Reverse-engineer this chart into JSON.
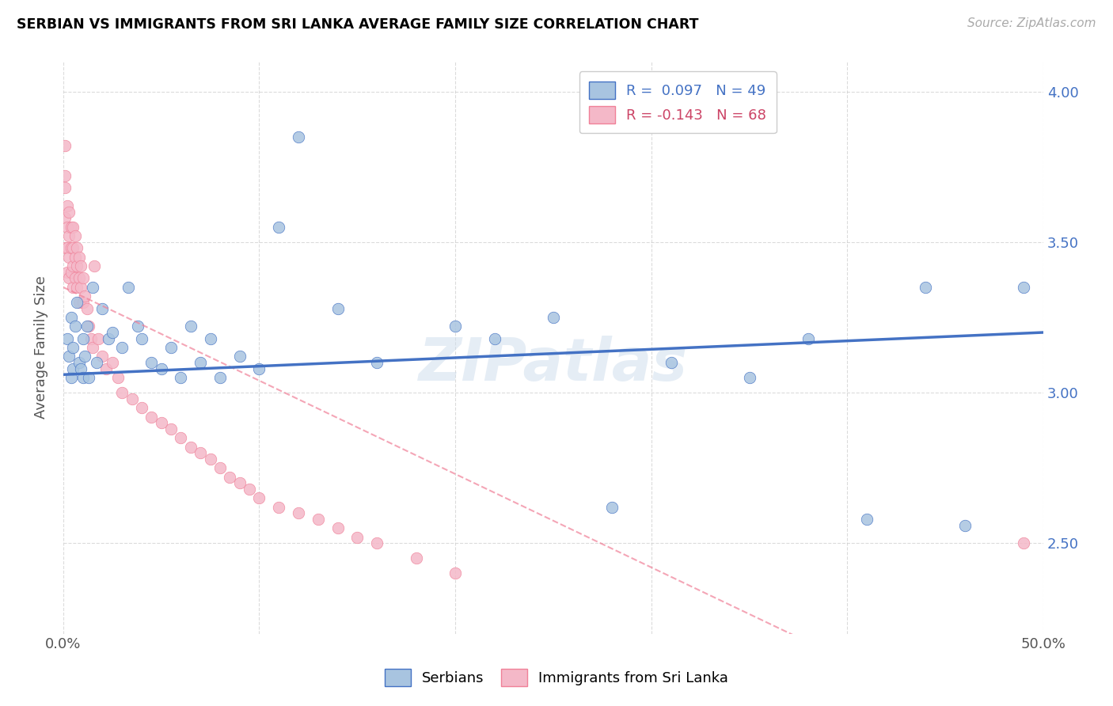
{
  "title": "SERBIAN VS IMMIGRANTS FROM SRI LANKA AVERAGE FAMILY SIZE CORRELATION CHART",
  "source": "Source: ZipAtlas.com",
  "ylabel": "Average Family Size",
  "xlim": [
    0.0,
    0.5
  ],
  "ylim": [
    2.2,
    4.1
  ],
  "yticks": [
    2.5,
    3.0,
    3.5,
    4.0
  ],
  "xticks": [
    0.0,
    0.1,
    0.2,
    0.3,
    0.4,
    0.5
  ],
  "xticklabels": [
    "0.0%",
    "",
    "",
    "",
    "",
    "50.0%"
  ],
  "yticklabels_right": [
    "2.50",
    "3.00",
    "3.50",
    "4.00"
  ],
  "color_serbian": "#a8c4e0",
  "color_srilanka": "#f4b8c8",
  "line_color_serbian": "#4472c4",
  "line_color_srilanka": "#f08098",
  "watermark": "ZIPatlas",
  "serbian_x": [
    0.002,
    0.003,
    0.004,
    0.004,
    0.005,
    0.005,
    0.006,
    0.007,
    0.008,
    0.009,
    0.01,
    0.01,
    0.011,
    0.012,
    0.013,
    0.015,
    0.017,
    0.02,
    0.023,
    0.025,
    0.03,
    0.033,
    0.038,
    0.04,
    0.045,
    0.05,
    0.055,
    0.06,
    0.065,
    0.07,
    0.075,
    0.08,
    0.09,
    0.1,
    0.11,
    0.12,
    0.14,
    0.16,
    0.2,
    0.22,
    0.25,
    0.28,
    0.31,
    0.35,
    0.38,
    0.41,
    0.44,
    0.46,
    0.49
  ],
  "serbian_y": [
    3.18,
    3.12,
    3.25,
    3.05,
    3.08,
    3.15,
    3.22,
    3.3,
    3.1,
    3.08,
    3.05,
    3.18,
    3.12,
    3.22,
    3.05,
    3.35,
    3.1,
    3.28,
    3.18,
    3.2,
    3.15,
    3.35,
    3.22,
    3.18,
    3.1,
    3.08,
    3.15,
    3.05,
    3.22,
    3.1,
    3.18,
    3.05,
    3.12,
    3.08,
    3.55,
    3.85,
    3.28,
    3.1,
    3.22,
    3.18,
    3.25,
    2.62,
    3.1,
    3.05,
    3.18,
    2.58,
    3.35,
    2.56,
    3.35
  ],
  "srilanka_x": [
    0.001,
    0.001,
    0.001,
    0.001,
    0.001,
    0.002,
    0.002,
    0.002,
    0.002,
    0.003,
    0.003,
    0.003,
    0.003,
    0.004,
    0.004,
    0.004,
    0.005,
    0.005,
    0.005,
    0.005,
    0.006,
    0.006,
    0.006,
    0.007,
    0.007,
    0.007,
    0.008,
    0.008,
    0.008,
    0.009,
    0.009,
    0.01,
    0.01,
    0.011,
    0.012,
    0.013,
    0.014,
    0.015,
    0.016,
    0.018,
    0.02,
    0.022,
    0.025,
    0.028,
    0.03,
    0.035,
    0.04,
    0.045,
    0.05,
    0.055,
    0.06,
    0.065,
    0.07,
    0.075,
    0.08,
    0.085,
    0.09,
    0.095,
    0.1,
    0.11,
    0.12,
    0.13,
    0.14,
    0.15,
    0.16,
    0.18,
    0.2,
    0.49
  ],
  "srilanka_y": [
    3.82,
    3.72,
    3.68,
    3.58,
    3.48,
    3.62,
    3.55,
    3.48,
    3.4,
    3.6,
    3.52,
    3.45,
    3.38,
    3.55,
    3.48,
    3.4,
    3.55,
    3.48,
    3.42,
    3.35,
    3.52,
    3.45,
    3.38,
    3.48,
    3.42,
    3.35,
    3.45,
    3.38,
    3.3,
    3.42,
    3.35,
    3.38,
    3.3,
    3.32,
    3.28,
    3.22,
    3.18,
    3.15,
    3.42,
    3.18,
    3.12,
    3.08,
    3.1,
    3.05,
    3.0,
    2.98,
    2.95,
    2.92,
    2.9,
    2.88,
    2.85,
    2.82,
    2.8,
    2.78,
    2.75,
    2.72,
    2.7,
    2.68,
    2.65,
    2.62,
    2.6,
    2.58,
    2.55,
    2.52,
    2.5,
    2.45,
    2.4,
    2.5
  ]
}
